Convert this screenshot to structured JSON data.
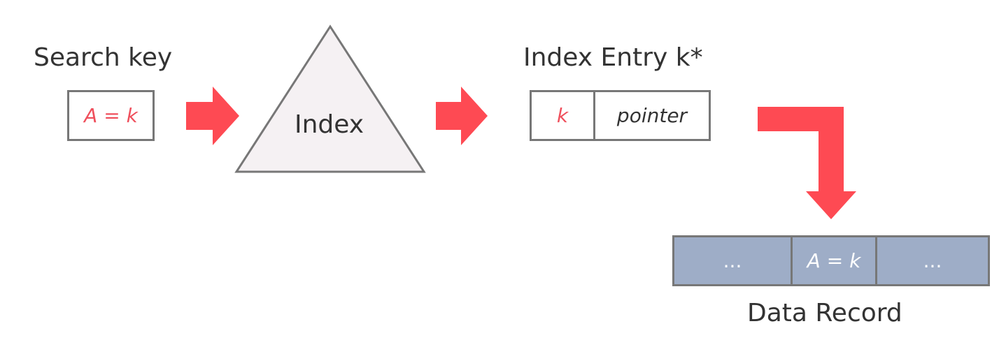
{
  "search_key": {
    "label": "Search key",
    "value": "A = k"
  },
  "index": {
    "label": "Index"
  },
  "index_entry": {
    "label": "Index Entry k*",
    "key": "k",
    "pointer": "pointer"
  },
  "data_record": {
    "label": "Data Record",
    "cells": [
      "...",
      "A = k",
      "..."
    ]
  },
  "colors": {
    "arrow": "#fe4a53",
    "key_text": "#ef4f5c",
    "record_fill": "#9eadc7",
    "border": "#777777",
    "triangle_fill": "#f5f1f3"
  }
}
